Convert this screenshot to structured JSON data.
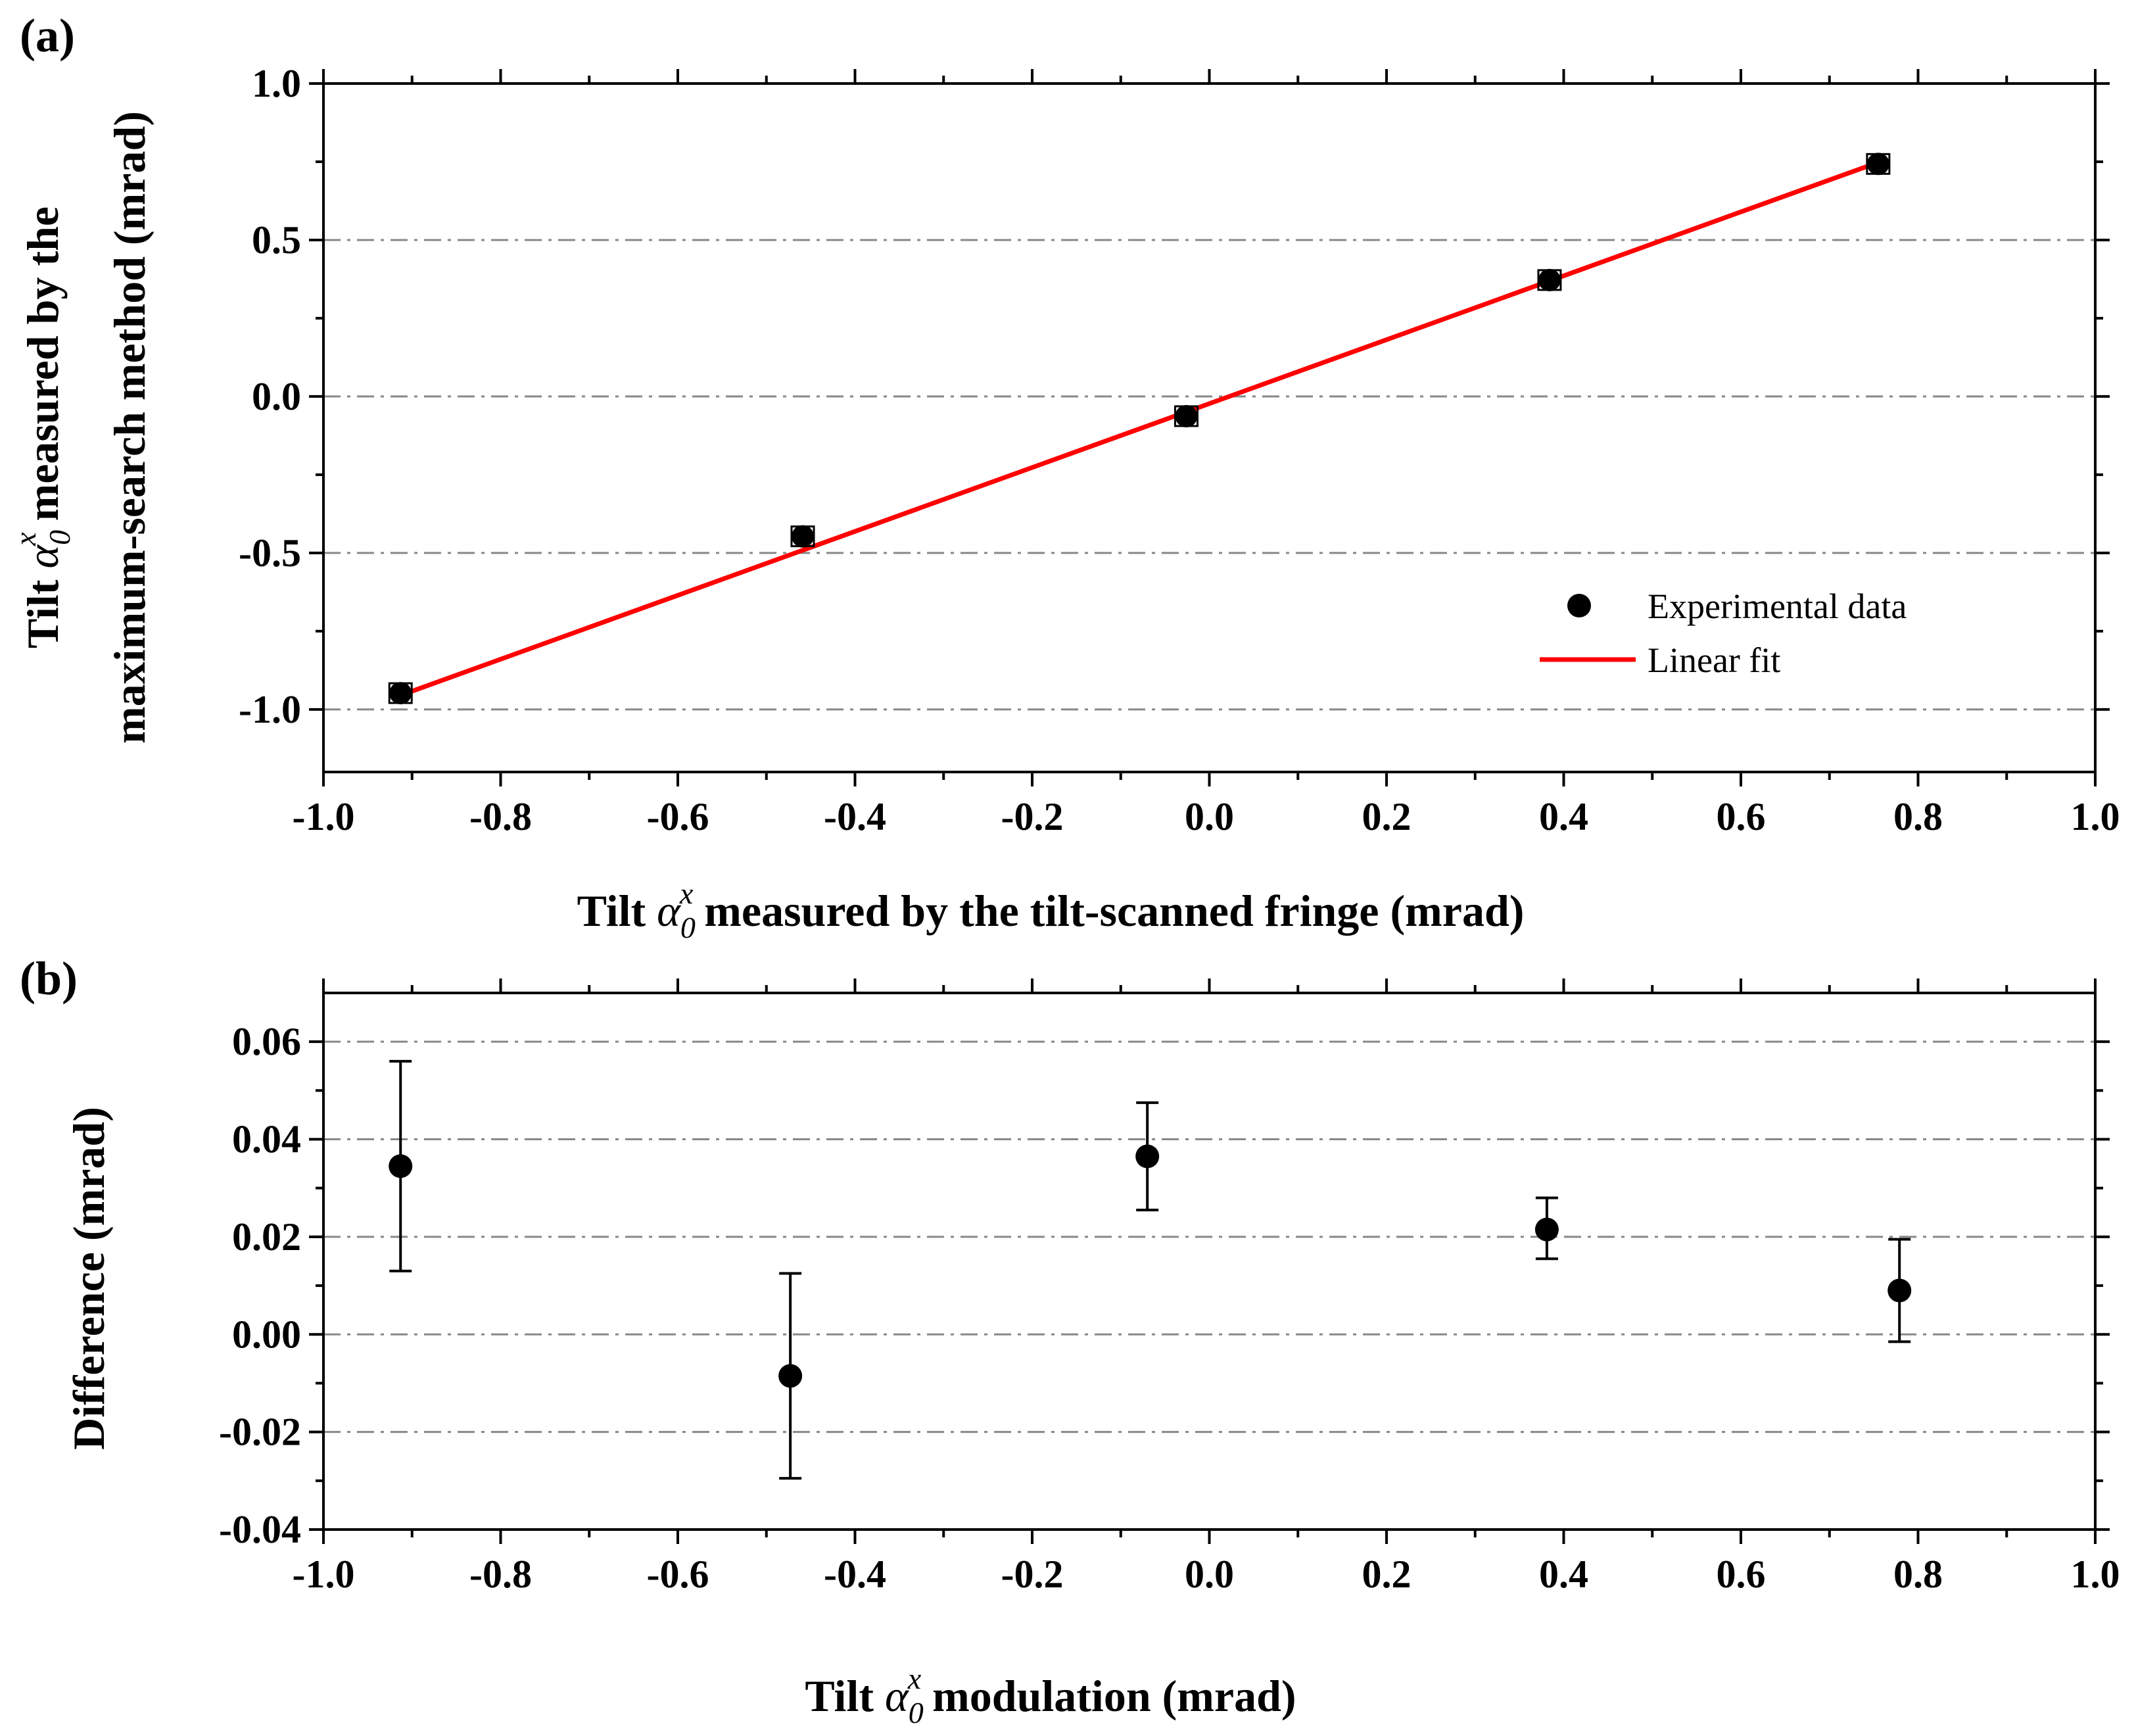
{
  "chart_data": [
    {
      "panel_label": "(a)",
      "type": "scatter",
      "xlabel": {
        "prefix": "Tilt ",
        "symbol": "α",
        "sub": "0",
        "sup": "x",
        "suffix": " measured by the tilt-scanned fringe (mrad)"
      },
      "ylabel_line1": {
        "prefix": "Tilt ",
        "symbol": "α",
        "sub": "0",
        "sup": "x",
        "suffix": " measured by the"
      },
      "ylabel_line2": "maximum-search method (mrad)",
      "xlim": [
        -1.0,
        1.0
      ],
      "ylim": [
        -1.2,
        1.0
      ],
      "xticks": [
        "-1.0",
        "-0.8",
        "-0.6",
        "-0.4",
        "-0.2",
        "0.0",
        "0.2",
        "0.4",
        "0.6",
        "0.8",
        "1.0"
      ],
      "yticks": [
        "-1.0",
        "-0.5",
        "0.0",
        "0.5",
        "1.0"
      ],
      "grid": "horizontal dash-dot at y ticks",
      "series": [
        {
          "name": "Experimental data",
          "type": "scatter",
          "x": [
            -0.913,
            -0.459,
            -0.026,
            0.384,
            0.755
          ],
          "y": [
            -0.948,
            -0.447,
            -0.063,
            0.372,
            0.743
          ]
        },
        {
          "name": "Linear fit",
          "type": "line",
          "color": "#ff0000",
          "x": [
            -0.913,
            0.755
          ],
          "y": [
            -0.955,
            0.748
          ]
        }
      ],
      "legend_position": "bottom-right"
    },
    {
      "panel_label": "(b)",
      "type": "scatter",
      "xlabel": {
        "prefix": "Tilt ",
        "symbol": "α",
        "sub": "0",
        "sup": "x",
        "suffix": " modulation (mrad)"
      },
      "ylabel": "Difference (mrad)",
      "xlim": [
        -1.0,
        1.0
      ],
      "ylim": [
        -0.04,
        0.07
      ],
      "xticks": [
        "-1.0",
        "-0.8",
        "-0.6",
        "-0.4",
        "-0.2",
        "0.0",
        "0.2",
        "0.4",
        "0.6",
        "0.8",
        "1.0"
      ],
      "yticks": [
        "-0.04",
        "-0.02",
        "0.00",
        "0.02",
        "0.04",
        "0.06"
      ],
      "grid": "horizontal dash-dot at y ticks",
      "series": [
        {
          "x": [
            -0.913,
            -0.473,
            -0.07,
            0.381,
            0.779
          ],
          "y": [
            0.0345,
            -0.0085,
            0.0365,
            0.0215,
            0.009
          ],
          "err_low": [
            0.013,
            -0.0295,
            0.0255,
            0.0155,
            -0.0015
          ],
          "err_high": [
            0.056,
            0.0125,
            0.0475,
            0.028,
            0.0195
          ]
        }
      ]
    }
  ]
}
